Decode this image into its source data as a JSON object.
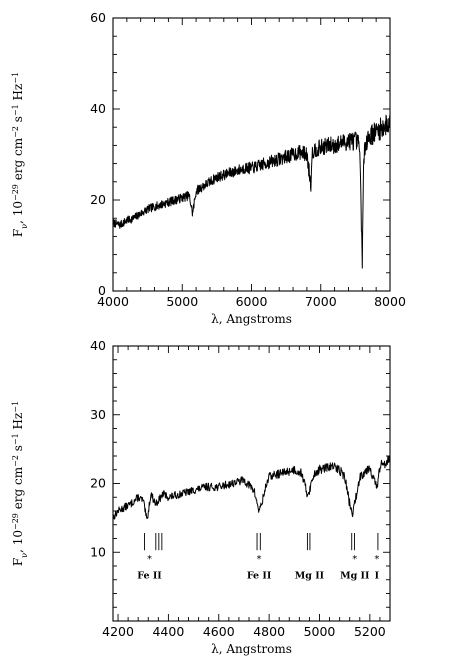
{
  "chart_data": [
    {
      "type": "line",
      "xlabel": "λ, Angstroms",
      "ylabel_html": "F<tspan baseline-shift='sub' font-size='8'>ν</tspan>, 10<tspan baseline-shift='super' font-size='8'>−29</tspan> erg cm<tspan baseline-shift='super' font-size='8'>−2</tspan> s<tspan baseline-shift='super' font-size='8'>−1</tspan> Hz<tspan baseline-shift='super' font-size='8'>−1</tspan>",
      "xlim": [
        4000,
        8000
      ],
      "ylim": [
        0,
        60
      ],
      "xticks": [
        4000,
        5000,
        6000,
        7000,
        8000
      ],
      "xtick_labels": [
        "4000",
        "5000",
        "6000",
        "7000",
        "8000"
      ],
      "yticks": [
        0,
        20,
        40,
        60
      ],
      "ytick_labels": [
        "0",
        "20",
        "40",
        "60"
      ],
      "series": [
        {
          "x": [
            4000,
            4100,
            4200,
            4300,
            4400,
            4500,
            4600,
            4700,
            4800,
            4900,
            5000,
            5100,
            5150,
            5200,
            5300,
            5400,
            5500,
            5600,
            5700,
            5800,
            5900,
            6000,
            6100,
            6200,
            6300,
            6400,
            6500,
            6600,
            6700,
            6800,
            6860,
            6870,
            6900,
            7000,
            7100,
            7200,
            7300,
            7400,
            7500,
            7560,
            7600,
            7620,
            7650,
            7700,
            7800,
            7900,
            8000
          ],
          "y": [
            15,
            14.5,
            15.5,
            16,
            17,
            18,
            18.5,
            19,
            19.5,
            20,
            20.5,
            21,
            17,
            22,
            23,
            24,
            25,
            25.5,
            26,
            26.5,
            27,
            27,
            27.5,
            28,
            28.5,
            29,
            29.5,
            30,
            30.5,
            30,
            23,
            30,
            31,
            31.5,
            32,
            32,
            32.5,
            33,
            33,
            32,
            7,
            28,
            33,
            34,
            35,
            36,
            37
          ]
        }
      ]
    },
    {
      "type": "line",
      "xlabel": "λ, Angstroms",
      "ylabel_html": "F<tspan baseline-shift='sub' font-size='8'>ν</tspan>, 10<tspan baseline-shift='super' font-size='8'>−29</tspan> erg cm<tspan baseline-shift='super' font-size='8'>−2</tspan> s<tspan baseline-shift='super' font-size='8'>−1</tspan> Hz<tspan baseline-shift='super' font-size='8'>−1</tspan>",
      "xlim": [
        4180,
        5280
      ],
      "ylim": [
        0,
        40
      ],
      "xticks": [
        4200,
        4400,
        4600,
        4800,
        5000,
        5200
      ],
      "xtick_labels": [
        "4200",
        "4400",
        "4600",
        "4800",
        "5000",
        "5200"
      ],
      "yticks": [
        10,
        20,
        30,
        40
      ],
      "ytick_labels": [
        "10",
        "20",
        "30",
        "40"
      ],
      "series": [
        {
          "x": [
            4180,
            4200,
            4250,
            4280,
            4300,
            4315,
            4330,
            4350,
            4380,
            4400,
            4450,
            4500,
            4550,
            4600,
            4650,
            4700,
            4740,
            4760,
            4770,
            4790,
            4800,
            4850,
            4900,
            4930,
            4950,
            4960,
            4980,
            5000,
            5050,
            5080,
            5100,
            5120,
            5130,
            5140,
            5160,
            5200,
            5220,
            5230,
            5240,
            5260,
            5280
          ],
          "y": [
            15,
            16,
            17,
            18,
            17.5,
            14.5,
            18.5,
            17,
            18.5,
            18,
            18.5,
            19,
            19.5,
            19.5,
            20,
            20.5,
            19,
            16,
            17,
            20,
            21,
            21.5,
            22,
            21.5,
            18.5,
            19,
            21.5,
            22,
            22.5,
            22,
            21,
            17,
            15.5,
            17,
            21,
            22.5,
            20,
            19.5,
            22.5,
            23,
            24
          ]
        }
      ],
      "annotations": [
        {
          "label": "Fe II",
          "x": 4325,
          "star": true,
          "ticks": [
            4305,
            4350,
            4362,
            4374
          ]
        },
        {
          "label": "Fe II",
          "x": 4760,
          "star": true,
          "ticks": [
            4752,
            4765
          ]
        },
        {
          "label": "Mg II",
          "x": 4960,
          "star": false,
          "ticks": [
            4952,
            4962
          ]
        },
        {
          "label": "Mg II",
          "x": 5140,
          "star": true,
          "ticks": [
            5128,
            5139
          ]
        },
        {
          "label": "I",
          "x": 5228,
          "star": true,
          "ticks": [
            5232
          ]
        }
      ]
    }
  ]
}
